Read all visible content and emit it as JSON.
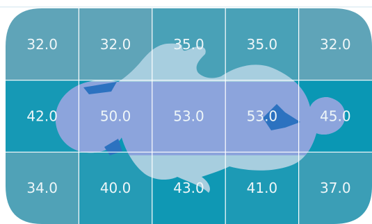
{
  "chart_data": {
    "type": "heatmap",
    "title": "",
    "xlabel": "",
    "ylabel": "",
    "rows": 3,
    "cols": 5,
    "values": [
      [
        32.0,
        32.0,
        35.0,
        35.0,
        32.0
      ],
      [
        42.0,
        50.0,
        53.0,
        53.0,
        45.0
      ],
      [
        34.0,
        40.0,
        43.0,
        41.0,
        37.0
      ]
    ],
    "labels": [
      [
        "32.0",
        "32.0",
        "35.0",
        "35.0",
        "32.0"
      ],
      [
        "42.0",
        "50.0",
        "53.0",
        "53.0",
        "45.0"
      ],
      [
        "34.0",
        "40.0",
        "43.0",
        "41.0",
        "37.0"
      ]
    ],
    "grid": true,
    "legend": "none"
  },
  "colors": {
    "low": "#5fa4b8",
    "high": "#0a97b4",
    "grid_line": "#ffffff",
    "label_text": "#eef6f8",
    "silhouette": "#a7cedf",
    "silhouette_hot": "#8ca4dc",
    "silhouette_accent": "#2c72c0"
  },
  "icons": {
    "overlay": "baby-silhouette-icon"
  }
}
